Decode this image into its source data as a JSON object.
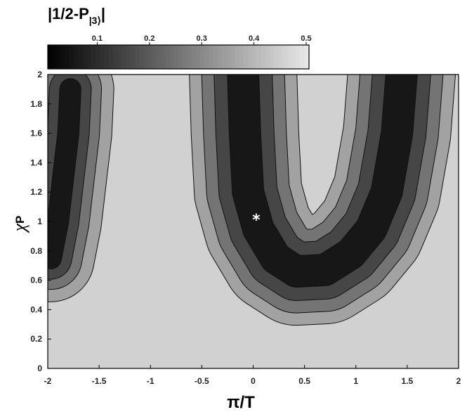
{
  "chart_data": {
    "type": "heatmap",
    "subtype": "filled-contour",
    "colorbar": {
      "title_parts": [
        "|1/2-P",
        "|3⟩",
        "|"
      ],
      "ticks": [
        0.1,
        0.2,
        0.3,
        0.4,
        0.5
      ],
      "tick_labels": [
        "0.1",
        "0.2",
        "0.3",
        "0.4",
        "0.5"
      ],
      "range": [
        0,
        0.5
      ],
      "colormap": "gray",
      "placement": "top"
    },
    "xlabel": "π/T",
    "ylabel_main": "χ",
    "ylabel_sub": "P",
    "xlim": [
      -2,
      2
    ],
    "ylim": [
      0,
      2
    ],
    "x_ticks": [
      -2,
      -1.5,
      -1,
      -0.5,
      0,
      0.5,
      1,
      1.5,
      2
    ],
    "x_tick_labels": [
      "-2",
      "-1.5",
      "-1",
      "-0.5",
      "0",
      "0.5",
      "1",
      "1.5",
      "2"
    ],
    "y_ticks": [
      0,
      0.2,
      0.4,
      0.6,
      0.8,
      1,
      1.2,
      1.4,
      1.6,
      1.8,
      2
    ],
    "y_tick_labels": [
      "0",
      "0.2",
      "0.4",
      "0.6",
      "0.8",
      "1",
      "1.2",
      "1.4",
      "1.6",
      "1.8",
      "2"
    ],
    "marker": {
      "symbol": "*",
      "x": 0.03,
      "y": 1.02
    },
    "background_level": 0.45,
    "regions": [
      {
        "name": "left-region",
        "levels": [
          0.35,
          0.25,
          0.15,
          0.05
        ],
        "spine": [
          [
            -1.78,
            1.9
          ],
          [
            -1.8,
            1.6
          ],
          [
            -1.85,
            1.3
          ],
          [
            -1.9,
            1.0
          ],
          [
            -1.97,
            0.75
          ]
        ],
        "half_widths": [
          0.42,
          0.3,
          0.2,
          0.1
        ]
      },
      {
        "name": "u-region",
        "levels": [
          0.35,
          0.25,
          0.15,
          0.05
        ],
        "spine": [
          [
            -0.1,
            2.05
          ],
          [
            -0.08,
            1.6
          ],
          [
            -0.05,
            1.2
          ],
          [
            0.05,
            0.95
          ],
          [
            0.22,
            0.75
          ],
          [
            0.42,
            0.66
          ],
          [
            0.7,
            0.67
          ],
          [
            0.95,
            0.78
          ],
          [
            1.15,
            0.95
          ],
          [
            1.3,
            1.2
          ],
          [
            1.4,
            1.6
          ],
          [
            1.45,
            2.05
          ]
        ],
        "half_widths": [
          0.52,
          0.4,
          0.28,
          0.15
        ]
      }
    ]
  }
}
